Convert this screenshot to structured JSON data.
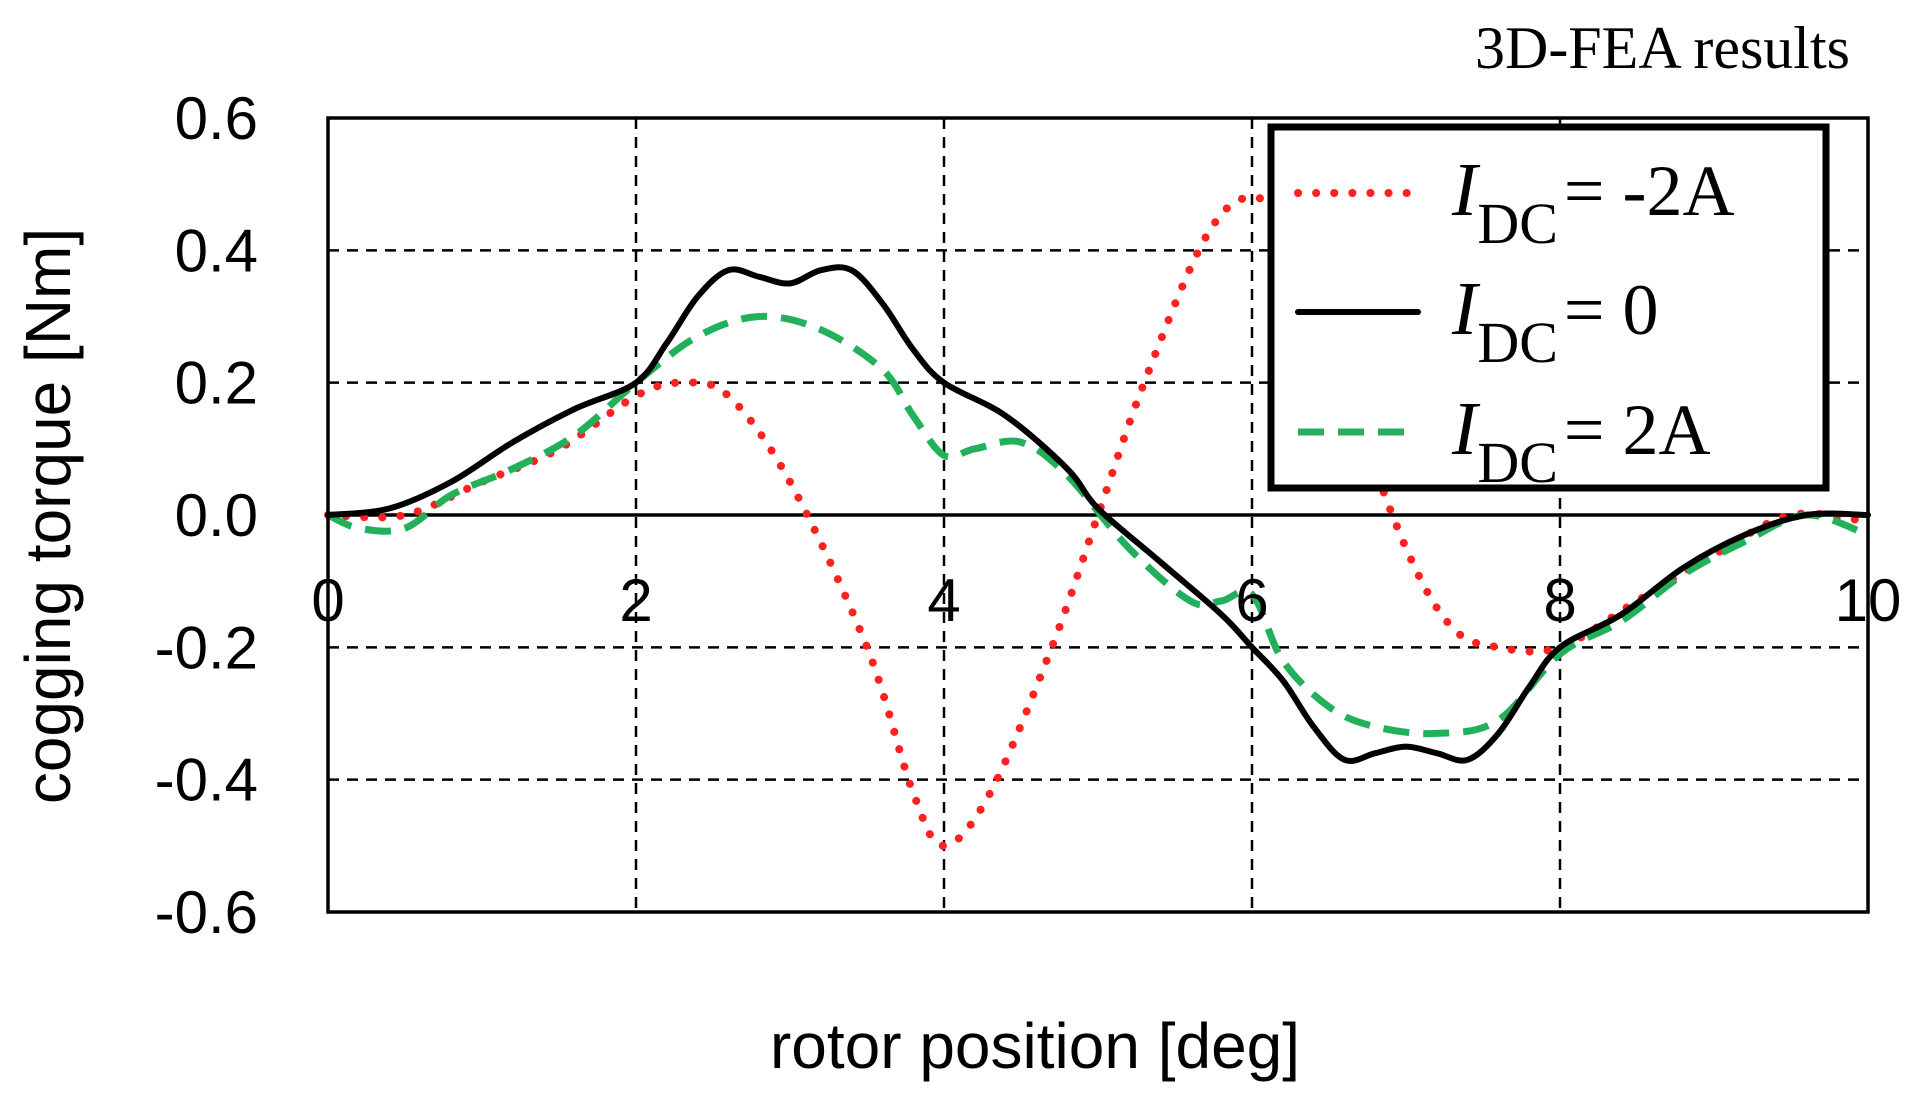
{
  "annotation": "3D-FEA results",
  "chart_data": {
    "type": "line",
    "xlabel": "rotor position [deg]",
    "ylabel": "cogging torque [Nm]",
    "xlim": [
      0,
      10
    ],
    "ylim": [
      -0.6,
      0.6
    ],
    "xticks": [
      0,
      2,
      4,
      6,
      8,
      10
    ],
    "yticks": [
      0.6,
      0.4,
      0.2,
      0.0,
      -0.2,
      -0.4,
      -0.6
    ],
    "xtick_labels": [
      "0",
      "2",
      "4",
      "6",
      "8",
      "10"
    ],
    "ytick_labels": [
      "0.6",
      "0.4",
      "0.2",
      "0.0",
      "-0.2",
      "-0.4",
      "-0.6"
    ],
    "grid": true,
    "legend_position": "top-right",
    "series": [
      {
        "name": "I_DC = -2A",
        "legend_main": "I",
        "legend_sub": "DC",
        "legend_rest": "= -2A",
        "color": "#ff2020",
        "style": "dotted",
        "x": [
          0,
          0.5,
          1.0,
          1.5,
          2.0,
          2.3,
          2.6,
          3.0,
          3.5,
          3.8,
          4.0,
          4.3,
          4.7,
          5.0,
          5.3,
          5.7,
          6.0,
          6.3,
          6.6,
          7.0,
          7.3,
          7.6,
          8.0,
          8.5,
          9.0,
          9.5,
          10.0
        ],
        "y": [
          0.0,
          0.0,
          0.05,
          0.1,
          0.18,
          0.2,
          0.18,
          0.05,
          -0.2,
          -0.42,
          -0.5,
          -0.42,
          -0.2,
          0.0,
          0.2,
          0.42,
          0.48,
          0.42,
          0.2,
          -0.05,
          -0.17,
          -0.2,
          -0.2,
          -0.13,
          -0.06,
          0.0,
          -0.01
        ]
      },
      {
        "name": "I_DC = 0",
        "legend_main": "I",
        "legend_sub": "DC",
        "legend_rest": "= 0",
        "color": "#000000",
        "style": "solid",
        "x": [
          0,
          0.4,
          0.8,
          1.2,
          1.6,
          2.0,
          2.2,
          2.4,
          2.6,
          2.8,
          3.0,
          3.2,
          3.4,
          3.6,
          3.8,
          4.0,
          4.4,
          4.8,
          5.0,
          5.4,
          5.8,
          6.0,
          6.2,
          6.4,
          6.6,
          6.8,
          7.0,
          7.2,
          7.4,
          7.6,
          7.8,
          8.0,
          8.4,
          8.8,
          9.2,
          9.6,
          10.0
        ],
        "y": [
          0.0,
          0.01,
          0.05,
          0.11,
          0.16,
          0.2,
          0.26,
          0.33,
          0.37,
          0.36,
          0.35,
          0.37,
          0.37,
          0.32,
          0.25,
          0.2,
          0.15,
          0.07,
          0.01,
          -0.07,
          -0.15,
          -0.2,
          -0.25,
          -0.32,
          -0.37,
          -0.36,
          -0.35,
          -0.36,
          -0.37,
          -0.33,
          -0.26,
          -0.2,
          -0.15,
          -0.08,
          -0.03,
          0.0,
          0.0
        ]
      },
      {
        "name": "I_DC = 2A",
        "legend_main": "I",
        "legend_sub": "DC",
        "legend_rest": "= 2A",
        "color": "#22b05a",
        "style": "dashed",
        "x": [
          0,
          0.2,
          0.5,
          0.8,
          1.2,
          1.6,
          2.0,
          2.4,
          2.8,
          3.2,
          3.6,
          3.8,
          4.0,
          4.2,
          4.5,
          4.8,
          5.2,
          5.6,
          5.8,
          6.0,
          6.2,
          6.5,
          6.8,
          7.2,
          7.6,
          8.0,
          8.4,
          8.8,
          9.2,
          9.6,
          10.0
        ],
        "y": [
          0.0,
          -0.02,
          -0.02,
          0.03,
          0.07,
          0.12,
          0.2,
          0.27,
          0.3,
          0.28,
          0.22,
          0.15,
          0.09,
          0.1,
          0.11,
          0.06,
          -0.05,
          -0.13,
          -0.13,
          -0.12,
          -0.22,
          -0.29,
          -0.32,
          -0.33,
          -0.31,
          -0.21,
          -0.16,
          -0.09,
          -0.04,
          0.0,
          -0.03
        ]
      }
    ]
  }
}
